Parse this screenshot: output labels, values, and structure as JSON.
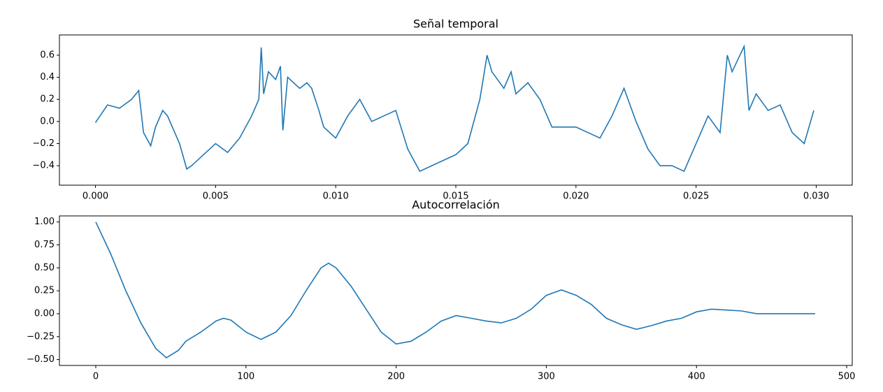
{
  "chart_data": [
    {
      "type": "line",
      "title": "Señal temporal",
      "color": "#1f77b4",
      "x": [
        0,
        0.0005,
        0.001,
        0.0015,
        0.0018,
        0.002,
        0.0023,
        0.0025,
        0.0028,
        0.003,
        0.0035,
        0.0038,
        0.004,
        0.0045,
        0.005,
        0.0055,
        0.006,
        0.0065,
        0.0068,
        0.0069,
        0.007,
        0.0072,
        0.0075,
        0.0077,
        0.0078,
        0.008,
        0.0085,
        0.0088,
        0.009,
        0.0093,
        0.0095,
        0.01,
        0.0105,
        0.011,
        0.0115,
        0.012,
        0.0125,
        0.013,
        0.0135,
        0.014,
        0.0145,
        0.015,
        0.0155,
        0.016,
        0.0163,
        0.0165,
        0.017,
        0.0173,
        0.0175,
        0.018,
        0.0185,
        0.019,
        0.0195,
        0.02,
        0.0205,
        0.021,
        0.0215,
        0.022,
        0.0225,
        0.023,
        0.0235,
        0.024,
        0.0245,
        0.025,
        0.0255,
        0.026,
        0.0263,
        0.0265,
        0.027,
        0.0272,
        0.0275,
        0.028,
        0.0285,
        0.029,
        0.0295,
        0.0299
      ],
      "values": [
        -0.01,
        0.15,
        0.12,
        0.2,
        0.28,
        -0.1,
        -0.22,
        -0.05,
        0.1,
        0.05,
        -0.2,
        -0.43,
        -0.4,
        -0.3,
        -0.2,
        -0.28,
        -0.15,
        0.05,
        0.2,
        0.67,
        0.25,
        0.45,
        0.38,
        0.5,
        -0.08,
        0.4,
        0.3,
        0.35,
        0.3,
        0.1,
        -0.05,
        -0.15,
        0.05,
        0.2,
        0.0,
        0.05,
        0.1,
        -0.25,
        -0.45,
        -0.4,
        -0.35,
        -0.3,
        -0.2,
        0.2,
        0.6,
        0.45,
        0.3,
        0.45,
        0.25,
        0.35,
        0.2,
        -0.05,
        -0.05,
        -0.05,
        -0.1,
        -0.15,
        0.05,
        0.3,
        0.0,
        -0.25,
        -0.4,
        -0.4,
        -0.45,
        -0.2,
        0.05,
        -0.1,
        0.6,
        0.45,
        0.68,
        0.1,
        0.25,
        0.1,
        0.15,
        -0.1,
        -0.2,
        0.1
      ],
      "xlim": [
        -0.0015,
        0.0315
      ],
      "ylim": [
        -0.576,
        0.783
      ],
      "xticks": [
        {
          "value": 0,
          "label": "0.000"
        },
        {
          "value": 0.005,
          "label": "0.005"
        },
        {
          "value": 0.01,
          "label": "0.010"
        },
        {
          "value": 0.015,
          "label": "0.015"
        },
        {
          "value": 0.02,
          "label": "0.020"
        },
        {
          "value": 0.025,
          "label": "0.025"
        },
        {
          "value": 0.03,
          "label": "0.030"
        }
      ],
      "yticks": [
        {
          "value": -0.4,
          "label": "−0.4"
        },
        {
          "value": -0.2,
          "label": "−0.2"
        },
        {
          "value": 0,
          "label": "0.0"
        },
        0.2,
        0.4,
        0.6
      ]
    },
    {
      "type": "line",
      "title": "Autocorrelación",
      "color": "#1f77b4",
      "x": [
        0,
        10,
        20,
        30,
        40,
        47,
        55,
        60,
        70,
        80,
        85,
        90,
        100,
        110,
        120,
        130,
        140,
        150,
        155,
        160,
        170,
        180,
        190,
        200,
        210,
        220,
        230,
        240,
        250,
        260,
        270,
        280,
        290,
        300,
        310,
        320,
        330,
        340,
        350,
        360,
        370,
        380,
        390,
        400,
        410,
        420,
        430,
        440,
        450,
        460,
        470,
        479
      ],
      "values": [
        1.0,
        0.65,
        0.25,
        -0.1,
        -0.38,
        -0.48,
        -0.4,
        -0.3,
        -0.2,
        -0.08,
        -0.05,
        -0.07,
        -0.2,
        -0.28,
        -0.2,
        -0.02,
        0.25,
        0.5,
        0.55,
        0.5,
        0.3,
        0.05,
        -0.2,
        -0.33,
        -0.3,
        -0.2,
        -0.08,
        -0.02,
        -0.05,
        -0.08,
        -0.1,
        -0.05,
        0.05,
        0.2,
        0.26,
        0.2,
        0.1,
        -0.05,
        -0.12,
        -0.17,
        -0.13,
        -0.08,
        -0.05,
        0.02,
        0.05,
        0.04,
        0.03,
        0.0,
        0.0,
        0.0,
        0.0,
        0.0
      ],
      "xlim": [
        -24.2,
        503.7
      ],
      "ylim": [
        -0.564,
        1.066
      ],
      "xticks": [
        0,
        100,
        200,
        300,
        400,
        500
      ],
      "yticks": [
        {
          "value": -0.5,
          "label": "−0.50"
        },
        {
          "value": -0.25,
          "label": "−0.25"
        },
        {
          "value": 0,
          "label": "0.00"
        },
        {
          "value": 0.25,
          "label": "0.25"
        },
        {
          "value": 0.5,
          "label": "0.50"
        },
        {
          "value": 0.75,
          "label": "0.75"
        },
        {
          "value": 1,
          "label": "1.00"
        }
      ]
    }
  ]
}
